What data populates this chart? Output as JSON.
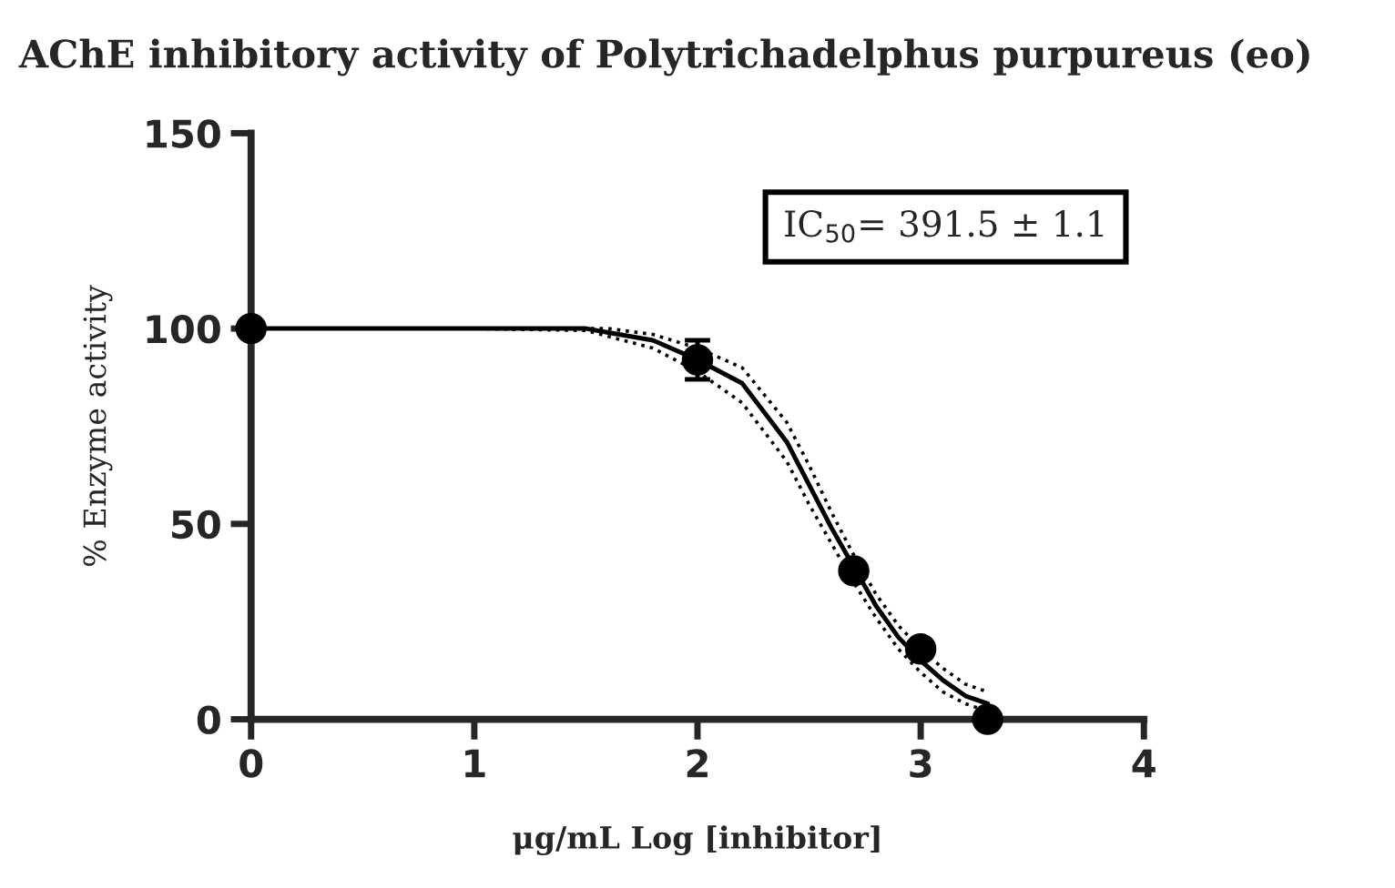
{
  "chart_data": {
    "type": "scatter",
    "title": "AChE inhibitory activity of Polytrichadelphus purpureus (eo)",
    "xlabel": "μg/mL Log [inhibitor]",
    "ylabel": "% Enzyme activity",
    "xlim": [
      0,
      4
    ],
    "xticks": [
      0,
      1,
      2,
      3,
      4
    ],
    "ylim": [
      0,
      150
    ],
    "yticks": [
      0,
      50,
      100,
      150
    ],
    "grid": false,
    "legend": false,
    "marker": "circle",
    "annotations": [
      "IC$_{50}$= 391.5 ± 1.1"
    ],
    "series": [
      {
        "color": "#000000",
        "x": [
          0,
          2,
          2.7,
          3,
          3.3
        ],
        "values": [
          100,
          92,
          38,
          18,
          0
        ],
        "errors": [
          null,
          5,
          null,
          null,
          null
        ]
      },
      {
        "type": "line",
        "color": "#000000",
        "marker": "none",
        "line_style": "solid",
        "x": [
          0,
          0.5,
          1,
          1.5,
          1.6,
          1.8,
          2,
          2.2,
          2.4,
          2.5,
          2.6,
          2.7,
          2.8,
          2.9,
          3,
          3.1,
          3.2,
          3.3
        ],
        "values": [
          100,
          100,
          100,
          100,
          99,
          97,
          92,
          86,
          71,
          60,
          49,
          39,
          29,
          21,
          15,
          10,
          6,
          4
        ]
      },
      {
        "type": "line",
        "color": "#000000",
        "marker": "none",
        "line_style": "dotted",
        "x": [
          0,
          0.5,
          1,
          1.5,
          1.6,
          1.8,
          2,
          2.2,
          2.4,
          2.5,
          2.6,
          2.7,
          2.8,
          2.9,
          3,
          3.1,
          3.2,
          3.3
        ],
        "values": [
          100,
          100,
          100,
          99.5,
          98,
          95,
          89,
          81,
          66,
          55,
          45,
          35,
          26,
          18,
          12,
          7,
          4,
          2
        ]
      },
      {
        "type": "line",
        "color": "#000000",
        "marker": "none",
        "line_style": "dotted",
        "x": [
          0,
          0.5,
          1,
          1.5,
          1.6,
          1.8,
          2,
          2.2,
          2.4,
          2.5,
          2.6,
          2.7,
          2.8,
          2.9,
          3,
          3.1,
          3.2,
          3.3
        ],
        "values": [
          100,
          100,
          100,
          100,
          100,
          98.5,
          95,
          90,
          76,
          65,
          53,
          42,
          32,
          24,
          18,
          13,
          9,
          7
        ]
      }
    ]
  }
}
